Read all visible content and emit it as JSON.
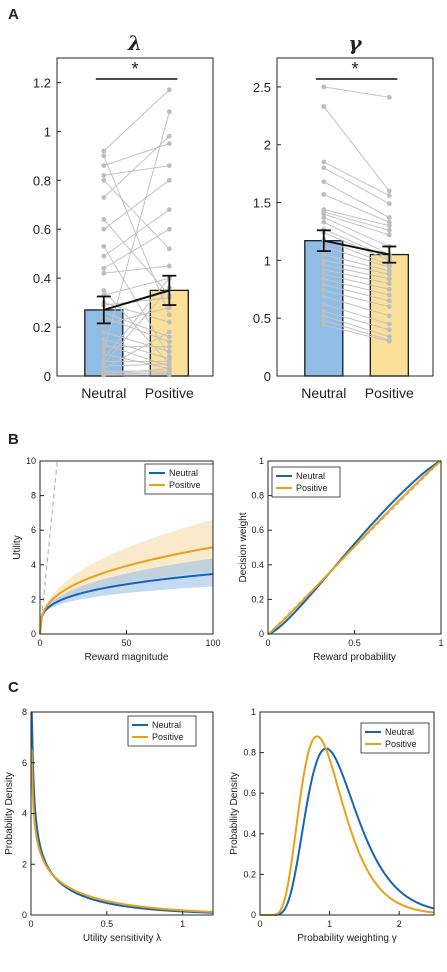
{
  "panels": {
    "A": "A",
    "B": "B",
    "C": "C"
  },
  "chart_data": [
    {
      "id": "A1",
      "type": "bar",
      "title": "λ",
      "categories": [
        "Neutral",
        "Positive"
      ],
      "values": [
        0.27,
        0.35
      ],
      "error": [
        0.055,
        0.06
      ],
      "bar_colors": [
        "#8fbde6",
        "#fbe09a"
      ],
      "ylim": [
        0,
        1.3
      ],
      "yticks": [
        0,
        0.2,
        0.4,
        0.6,
        0.8,
        1,
        1.2
      ],
      "ytick_labels": [
        "0",
        "0.2",
        "0.4",
        "0.6",
        "0.8",
        "1",
        "1.2"
      ],
      "significance": "*",
      "subjects": [
        [
          0.92,
          1.17
        ],
        [
          0.9,
          0.25
        ],
        [
          0.86,
          0.95
        ],
        [
          0.82,
          0.86
        ],
        [
          0.8,
          0.52
        ],
        [
          0.73,
          0.98
        ],
        [
          0.64,
          0.33
        ],
        [
          0.6,
          0.8
        ],
        [
          0.53,
          0.08
        ],
        [
          0.49,
          0.68
        ],
        [
          0.44,
          0.6
        ],
        [
          0.42,
          0.45
        ],
        [
          0.35,
          0.05
        ],
        [
          0.33,
          0.4
        ],
        [
          0.3,
          0.22
        ],
        [
          0.29,
          0.32
        ],
        [
          0.26,
          0.16
        ],
        [
          0.24,
          0.14
        ],
        [
          0.21,
          0.28
        ],
        [
          0.18,
          0.1
        ],
        [
          0.15,
          0.07
        ],
        [
          0.13,
          0.04
        ],
        [
          0.12,
          0.12
        ],
        [
          0.1,
          1.08
        ],
        [
          0.09,
          0.03
        ],
        [
          0.07,
          0.4
        ],
        [
          0.06,
          0.06
        ],
        [
          0.05,
          0.36
        ],
        [
          0.04,
          0.05
        ],
        [
          0.03,
          0.18
        ],
        [
          0.02,
          0.02
        ],
        [
          0.015,
          0.01
        ],
        [
          0.01,
          0.03
        ],
        [
          0.005,
          0.015
        ],
        [
          0.003,
          0.005
        ]
      ]
    },
    {
      "id": "A2",
      "type": "bar",
      "title": "γ",
      "categories": [
        "Neutral",
        "Positive"
      ],
      "values": [
        1.17,
        1.05
      ],
      "error": [
        0.09,
        0.07
      ],
      "bar_colors": [
        "#8fbde6",
        "#fbe09a"
      ],
      "ylim": [
        0,
        2.75
      ],
      "yticks": [
        0,
        0.5,
        1,
        1.5,
        2,
        2.5
      ],
      "ytick_labels": [
        "0",
        "0.5",
        "1",
        "1.5",
        "2",
        "2.5"
      ],
      "significance": "*",
      "subjects": [
        [
          2.5,
          2.41
        ],
        [
          2.33,
          1.6
        ],
        [
          1.85,
          1.56
        ],
        [
          1.8,
          1.49
        ],
        [
          1.68,
          1.37
        ],
        [
          1.57,
          1.33
        ],
        [
          1.44,
          1.3
        ],
        [
          1.42,
          1.26
        ],
        [
          1.4,
          1.22
        ],
        [
          1.37,
          1.12
        ],
        [
          1.33,
          1.05
        ],
        [
          1.27,
          1.02
        ],
        [
          1.24,
          1.0
        ],
        [
          1.18,
          0.96
        ],
        [
          1.12,
          0.94
        ],
        [
          1.05,
          0.91
        ],
        [
          1.0,
          0.88
        ],
        [
          0.96,
          0.84
        ],
        [
          0.92,
          0.8
        ],
        [
          0.88,
          0.75
        ],
        [
          0.84,
          0.7
        ],
        [
          0.79,
          0.65
        ],
        [
          0.74,
          0.6
        ],
        [
          0.69,
          0.52
        ],
        [
          0.62,
          0.45
        ],
        [
          0.56,
          0.4
        ],
        [
          0.52,
          0.34
        ],
        [
          0.48,
          0.31
        ],
        [
          0.44,
          0.3
        ]
      ]
    },
    {
      "id": "B1",
      "type": "line",
      "xlabel": "Reward magnitude",
      "ylabel": "Utility",
      "xlim": [
        0,
        100
      ],
      "ylim": [
        0,
        10
      ],
      "xticks": [
        0,
        50,
        100
      ],
      "yticks": [
        0,
        2,
        4,
        6,
        8,
        10
      ],
      "xtick_labels": [
        "0",
        "50",
        "100"
      ],
      "ytick_labels": [
        "0",
        "2",
        "4",
        "6",
        "8",
        "10"
      ],
      "legend": [
        "Neutral",
        "Positive"
      ],
      "series": [
        {
          "name": "Neutral",
          "color": "#1764b6",
          "band": "#9cc2e8",
          "lambda": 0.27,
          "lambda_lo": 0.22,
          "lambda_hi": 0.32
        },
        {
          "name": "Positive",
          "color": "#e7a21a",
          "band": "#f6dba6",
          "lambda": 0.35,
          "lambda_lo": 0.28,
          "lambda_hi": 0.41
        }
      ],
      "identity_color": "#bbbbbb"
    },
    {
      "id": "B2",
      "type": "line",
      "xlabel": "Reward probability",
      "ylabel": "Decision weight",
      "xlim": [
        0,
        1
      ],
      "ylim": [
        0,
        1
      ],
      "xticks": [
        0,
        0.5,
        1
      ],
      "yticks": [
        0,
        0.2,
        0.4,
        0.6,
        0.8,
        1
      ],
      "xtick_labels": [
        "0",
        "0.5",
        "1"
      ],
      "ytick_labels": [
        "0",
        "0.2",
        "0.4",
        "0.6",
        "0.8",
        "1"
      ],
      "legend": [
        "Neutral",
        "Positive"
      ],
      "series": [
        {
          "name": "Neutral",
          "color": "#1764b6",
          "gamma": 1.17
        },
        {
          "name": "Positive",
          "color": "#e7a21a",
          "gamma": 1.05
        }
      ]
    },
    {
      "id": "C1",
      "type": "line",
      "xlabel": "Utility sensitivity λ",
      "ylabel": "Probability Density",
      "xlim": [
        0,
        1.2
      ],
      "ylim": [
        0,
        8
      ],
      "xticks": [
        0,
        0.5,
        1
      ],
      "yticks": [
        0,
        2,
        4,
        6,
        8
      ],
      "xtick_labels": [
        "0",
        "0.5",
        "1"
      ],
      "ytick_labels": [
        "0",
        "2",
        "4",
        "6",
        "8"
      ],
      "legend": [
        "Neutral",
        "Positive"
      ],
      "series": [
        {
          "name": "Neutral",
          "color": "#1764b6",
          "shape": 0.55,
          "scale": 0.55
        },
        {
          "name": "Positive",
          "color": "#e7a21a",
          "shape": 0.65,
          "scale": 0.58
        }
      ]
    },
    {
      "id": "C2",
      "type": "line",
      "xlabel": "Probability weighting γ",
      "ylabel": "Probability Density",
      "xlim": [
        0,
        2.5
      ],
      "ylim": [
        0,
        1
      ],
      "xticks": [
        0,
        1,
        2
      ],
      "yticks": [
        0,
        0.2,
        0.4,
        0.6,
        0.8,
        1
      ],
      "xtick_labels": [
        "0",
        "1",
        "2"
      ],
      "ytick_labels": [
        "0",
        "0.2",
        "0.4",
        "0.6",
        "0.8",
        "1"
      ],
      "legend": [
        "Neutral",
        "Positive"
      ],
      "series": [
        {
          "name": "Neutral",
          "color": "#1764b6",
          "mode": 0.95,
          "peak": 0.82
        },
        {
          "name": "Positive",
          "color": "#e7a21a",
          "mode": 0.82,
          "peak": 0.88
        }
      ]
    }
  ]
}
